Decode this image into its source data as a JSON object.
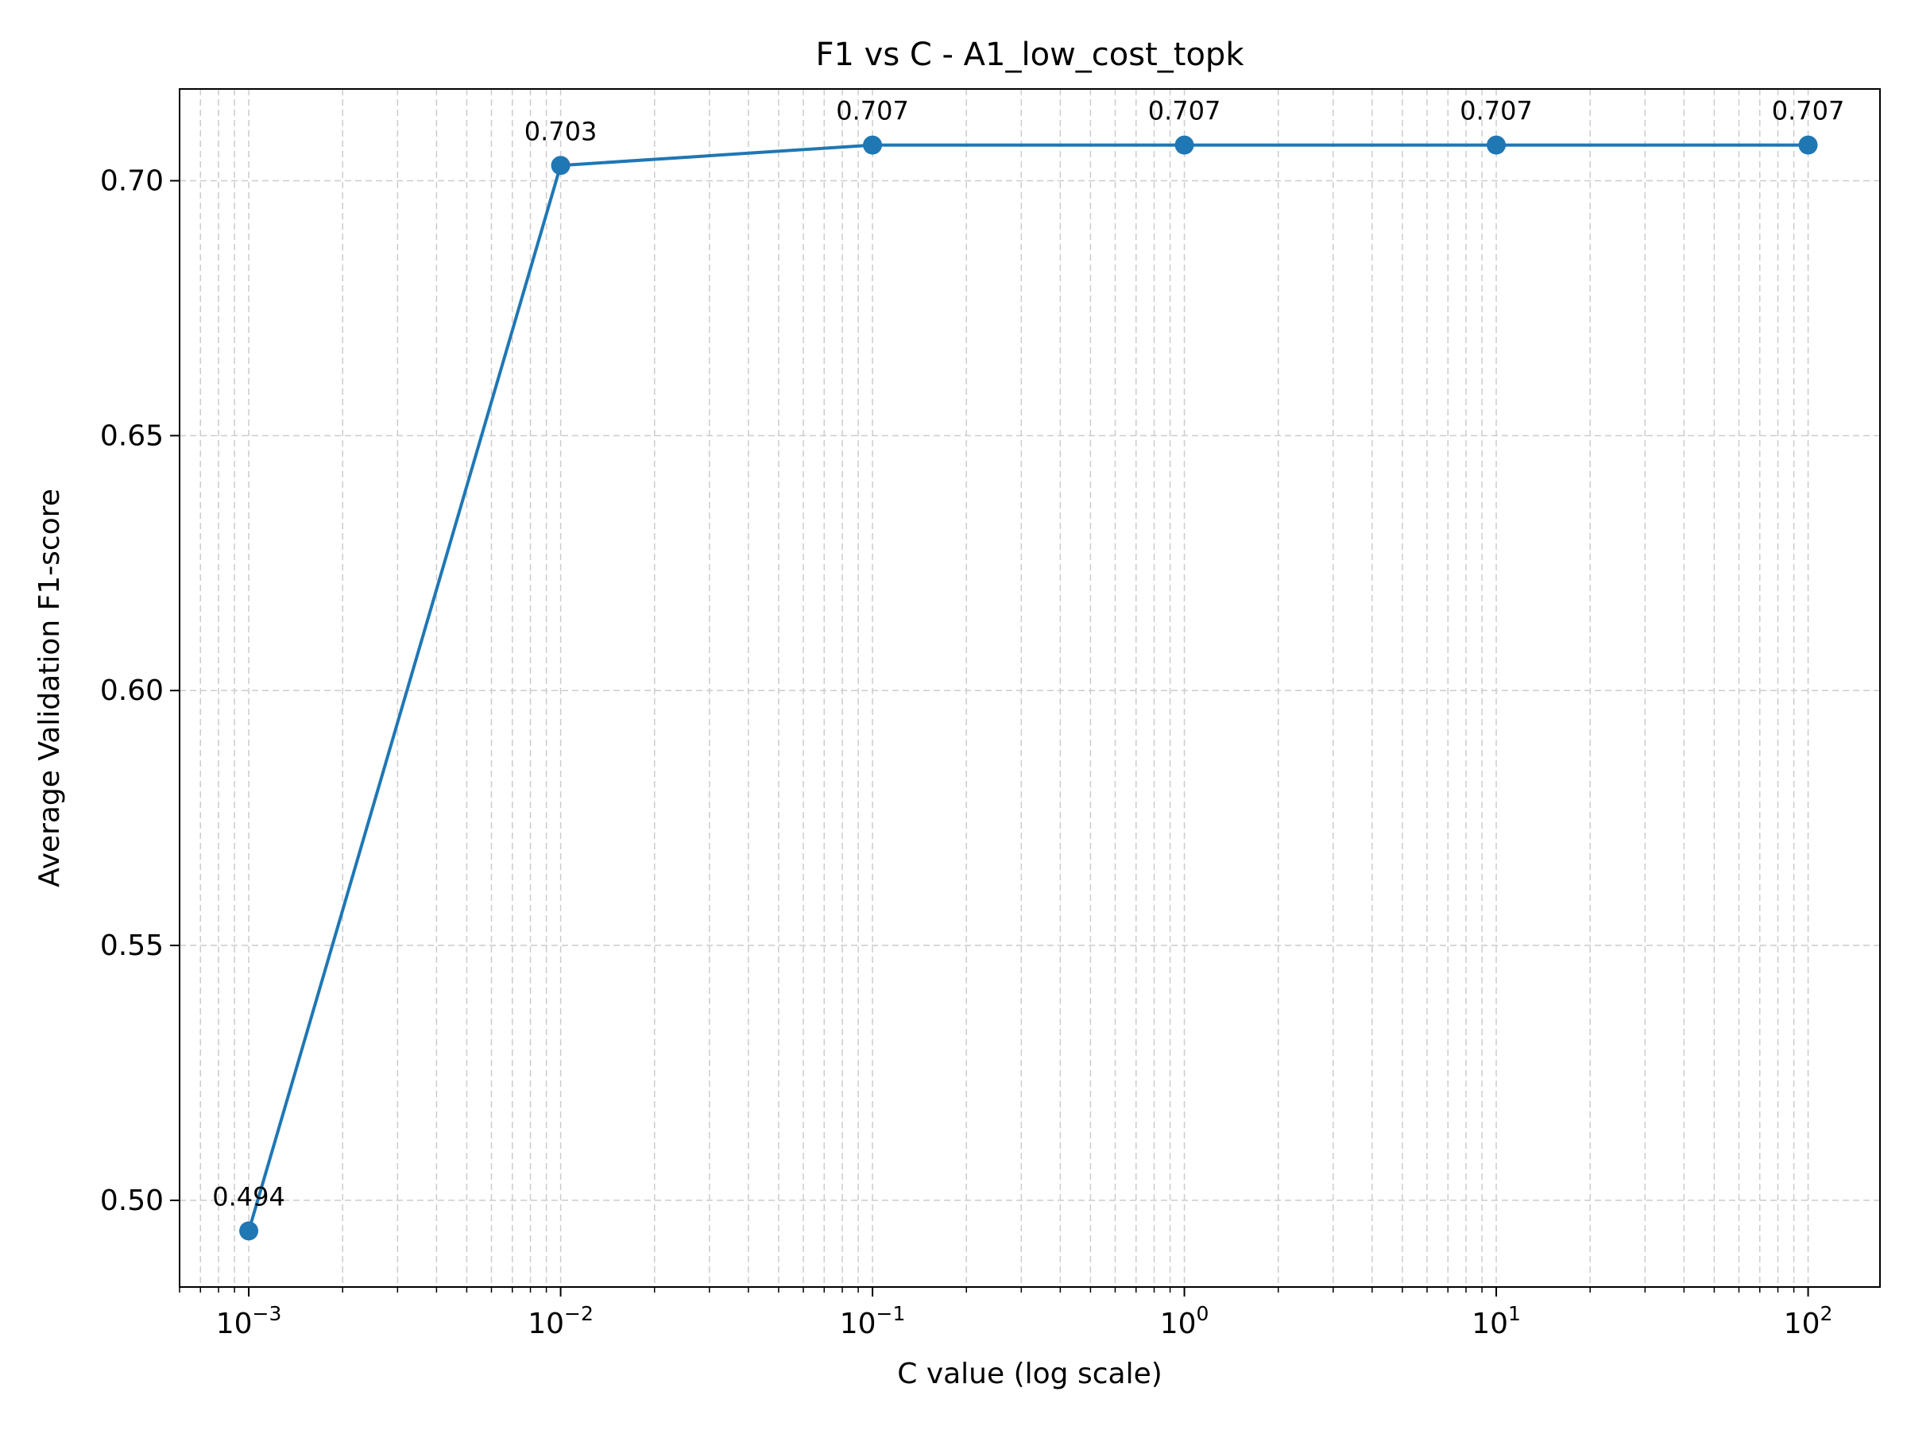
{
  "chart_data": {
    "type": "line",
    "title": "F1 vs C - A1_low_cost_topk",
    "xlabel": "C value (log scale)",
    "ylabel": "Average Validation F1-score",
    "x_scale": "log",
    "x": [
      0.001,
      0.01,
      0.1,
      1,
      10,
      100
    ],
    "series": [
      {
        "values": [
          0.494,
          0.703,
          0.707,
          0.707,
          0.707,
          0.707
        ],
        "color": "#1f77b4",
        "marker": "circle"
      }
    ],
    "data_labels": [
      "0.494",
      "0.703",
      "0.707",
      "0.707",
      "0.707",
      "0.707"
    ],
    "xlim": [
      0.0006,
      170
    ],
    "ylim": [
      0.483,
      0.718
    ],
    "x_ticks": [
      {
        "value": 0.001,
        "base": "10",
        "exp": "−3"
      },
      {
        "value": 0.01,
        "base": "10",
        "exp": "−2"
      },
      {
        "value": 0.1,
        "base": "10",
        "exp": "−1"
      },
      {
        "value": 1,
        "base": "10",
        "exp": "0"
      },
      {
        "value": 10,
        "base": "10",
        "exp": "1"
      },
      {
        "value": 100,
        "base": "10",
        "exp": "2"
      }
    ],
    "y_ticks": [
      {
        "value": 0.5,
        "label": "0.50"
      },
      {
        "value": 0.55,
        "label": "0.55"
      },
      {
        "value": 0.6,
        "label": "0.60"
      },
      {
        "value": 0.65,
        "label": "0.65"
      },
      {
        "value": 0.7,
        "label": "0.70"
      }
    ],
    "grid": true,
    "grid_style": "dashed",
    "grid_color": "#cccccc",
    "legend": "none"
  }
}
